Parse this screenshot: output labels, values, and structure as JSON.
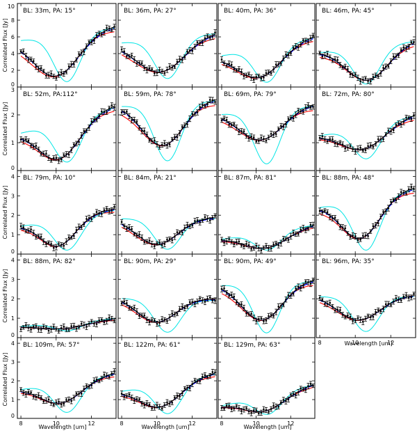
{
  "figure": {
    "ylabel": "Correlated Flux [Jy]",
    "xlabel": "Wavelength [um]"
  },
  "chart_data": {
    "type": "line",
    "grid": {
      "rows": 5,
      "cols": 4
    },
    "xlim": [
      7.8,
      13.4
    ],
    "x_ticks": [
      8,
      10,
      12
    ],
    "ylabel": "Correlated Flux [Jy]",
    "xlabel": "Wavelength [um]",
    "series_styles": [
      {
        "name": "observed",
        "color": "#000000",
        "style": "solid + error bars"
      },
      {
        "name": "model-black",
        "color": "#000000",
        "style": "solid"
      },
      {
        "name": "model-red",
        "color": "#ff0000",
        "style": "solid"
      },
      {
        "name": "model-blue",
        "color": "#0000ff",
        "style": "dashed"
      },
      {
        "name": "model-cyan",
        "color": "#00e5e5",
        "style": "solid"
      }
    ],
    "rows": [
      {
        "ylim": [
          0,
          10
        ],
        "yticks": [
          0,
          2,
          4,
          6,
          8,
          10
        ]
      },
      {
        "ylim": [
          0,
          3
        ],
        "yticks": [
          0,
          1,
          2,
          3
        ]
      },
      {
        "ylim": [
          0,
          4.3
        ],
        "yticks": [
          0,
          1,
          2,
          3,
          4
        ]
      },
      {
        "ylim": [
          0,
          4.3
        ],
        "yticks": [
          0,
          1,
          2,
          3,
          4
        ]
      },
      {
        "ylim": [
          0,
          4.3
        ],
        "yticks": [
          0,
          1,
          2,
          3,
          4
        ]
      }
    ],
    "panels": [
      {
        "label": "BL:  33m, PA: 15°",
        "row": 0,
        "col": 0,
        "left": 5.8,
        "min": 1.3,
        "right": 7.3,
        "minX": 9.9,
        "width": 1.3,
        "cyanDepth": 0.3
      },
      {
        "label": "BL:  36m, PA: 27°",
        "row": 0,
        "col": 1,
        "left": 5.5,
        "min": 1.8,
        "right": 6.6,
        "minX": 10.1,
        "width": 1.4,
        "cyanDepth": 0.3
      },
      {
        "label": "BL:  40m, PA: 36°",
        "row": 0,
        "col": 2,
        "left": 3.9,
        "min": 1.1,
        "right": 6.0,
        "minX": 10.0,
        "width": 1.3,
        "cyanDepth": 0.3
      },
      {
        "label": "BL:  46m, PA: 45°",
        "row": 0,
        "col": 3,
        "left": 4.3,
        "min": 0.8,
        "right": 5.6,
        "minX": 10.6,
        "width": 1.2,
        "cyanDepth": 0.3
      },
      {
        "label": "BL:  52m, PA:112°",
        "row": 1,
        "col": 0,
        "left": 1.4,
        "min": 0.4,
        "right": 2.3,
        "minX": 10.0,
        "width": 1.2,
        "cyanDepth": 0.05
      },
      {
        "label": "BL:  59m, PA: 78°",
        "row": 1,
        "col": 1,
        "left": 2.4,
        "min": 0.9,
        "right": 2.6,
        "minX": 10.3,
        "width": 1.2,
        "cyanDepth": 0.5
      },
      {
        "label": "BL:  69m, PA: 79°",
        "row": 1,
        "col": 2,
        "left": 2.1,
        "min": 1.1,
        "right": 2.4,
        "minX": 10.2,
        "width": 1.3,
        "cyanDepth": 0.7
      },
      {
        "label": "BL:  72m, PA: 80°",
        "row": 1,
        "col": 3,
        "left": 1.3,
        "min": 0.75,
        "right": 2.0,
        "minX": 10.2,
        "width": 1.3,
        "cyanDepth": 0.35
      },
      {
        "label": "BL:  79m, PA: 10°",
        "row": 2,
        "col": 0,
        "left": 1.5,
        "min": 0.4,
        "right": 2.3,
        "minX": 10.0,
        "width": 1.0,
        "cyanDepth": 0.3
      },
      {
        "label": "BL:  84m, PA: 21°",
        "row": 2,
        "col": 1,
        "left": 1.9,
        "min": 0.5,
        "right": 1.9,
        "minX": 10.0,
        "width": 1.2,
        "cyanDepth": 0.35
      },
      {
        "label": "BL:  87m, PA: 81°",
        "row": 2,
        "col": 2,
        "left": 0.8,
        "min": 0.3,
        "right": 1.5,
        "minX": 10.3,
        "width": 1.3,
        "cyanDepth": 0.15
      },
      {
        "label": "BL:  88m, PA: 48°",
        "row": 2,
        "col": 3,
        "left": 2.5,
        "min": 0.8,
        "right": 3.4,
        "minX": 10.2,
        "width": 1.1,
        "cyanDepth": 0.6
      },
      {
        "label": "BL:  88m, PA: 82°",
        "row": 3,
        "col": 0,
        "left": 0.6,
        "min": 0.45,
        "right": 1.0,
        "minX": 10.0,
        "width": 1.5,
        "cyanDepth": 0.15
      },
      {
        "label": "BL:  90m, PA: 29°",
        "row": 3,
        "col": 1,
        "left": 2.1,
        "min": 0.8,
        "right": 2.0,
        "minX": 10.0,
        "width": 1.1,
        "cyanDepth": 0.55
      },
      {
        "label": "BL:  90m, PA: 49°",
        "row": 3,
        "col": 2,
        "left": 2.8,
        "min": 0.9,
        "right": 3.0,
        "minX": 10.3,
        "width": 1.2,
        "cyanDepth": 0.6
      },
      {
        "label": "BL:  96m, PA: 35°",
        "row": 3,
        "col": 3,
        "left": 2.2,
        "min": 0.9,
        "right": 2.2,
        "minX": 10.2,
        "width": 1.2,
        "cyanDepth": 0.55
      },
      {
        "label": "BL: 109m, PA: 57°",
        "row": 4,
        "col": 0,
        "left": 1.6,
        "min": 0.8,
        "right": 2.4,
        "minX": 10.1,
        "width": 1.2,
        "cyanDepth": 0.5
      },
      {
        "label": "BL: 122m, PA: 61°",
        "row": 4,
        "col": 1,
        "left": 1.5,
        "min": 0.6,
        "right": 2.4,
        "minX": 10.0,
        "width": 1.2,
        "cyanDepth": 0.45
      },
      {
        "label": "BL: 129m, PA: 63°",
        "row": 4,
        "col": 2,
        "left": 0.7,
        "min": 0.35,
        "right": 1.8,
        "minX": 10.1,
        "width": 1.3,
        "cyanDepth": 0.25
      }
    ]
  }
}
